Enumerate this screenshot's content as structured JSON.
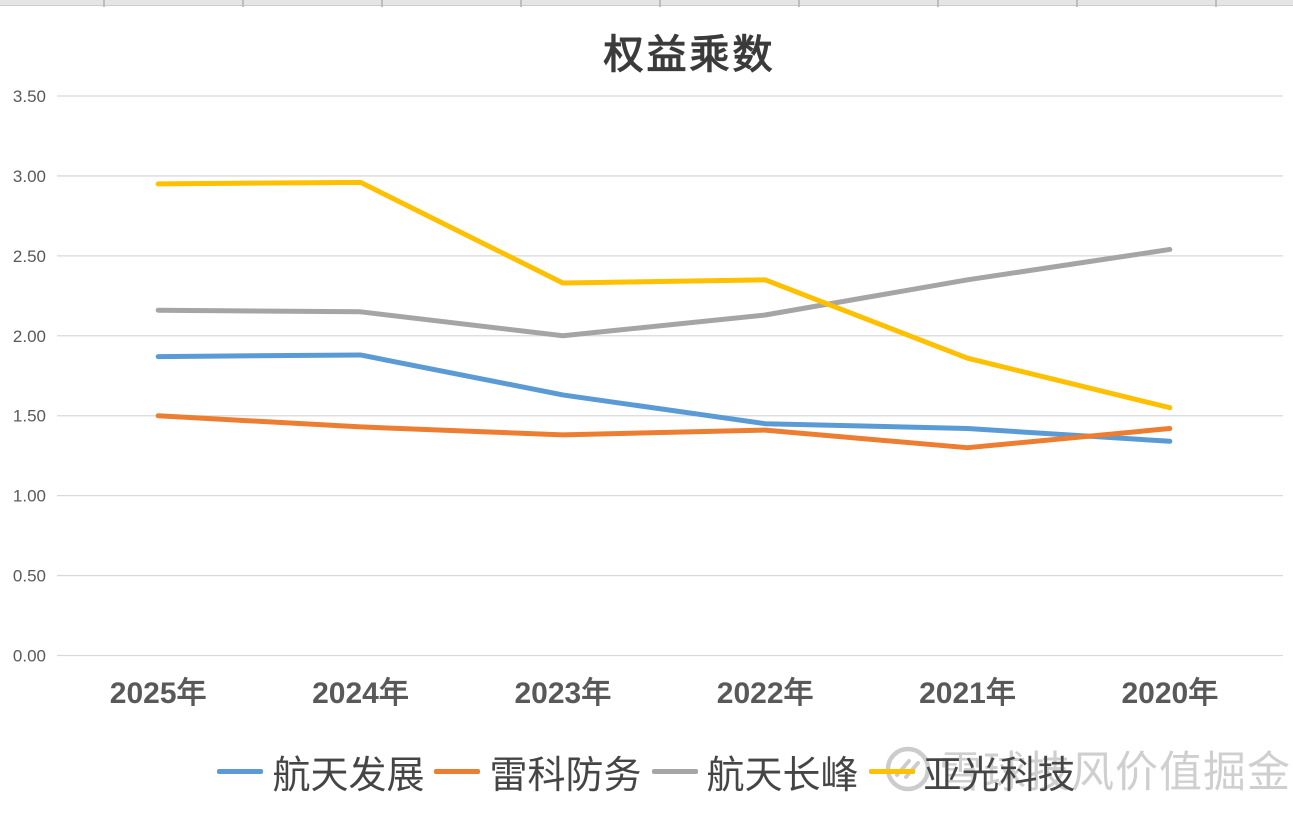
{
  "chart_data": {
    "type": "line",
    "title": "权益乘数",
    "categories": [
      "2025年",
      "2024年",
      "2023年",
      "2022年",
      "2021年",
      "2020年"
    ],
    "series": [
      {
        "name": "航天发展",
        "color": "#5B9BD5",
        "values": [
          1.87,
          1.88,
          1.63,
          1.45,
          1.42,
          1.34
        ]
      },
      {
        "name": "雷科防务",
        "color": "#ED7D31",
        "values": [
          1.5,
          1.43,
          1.38,
          1.41,
          1.3,
          1.42
        ]
      },
      {
        "name": "航天长峰",
        "color": "#A5A5A5",
        "values": [
          2.16,
          2.15,
          2.0,
          2.13,
          2.35,
          2.54
        ]
      },
      {
        "name": "亚光科技",
        "color": "#FFC000",
        "values": [
          2.95,
          2.96,
          2.33,
          2.35,
          1.86,
          1.55
        ]
      }
    ],
    "ylim": [
      0,
      3.5
    ],
    "ytick_labels": [
      "3.50",
      "3.00",
      "2.50",
      "2.00",
      "1.50",
      "1.00",
      "0.50",
      "0.00"
    ],
    "grid": "horizontal",
    "legend_position": "bottom",
    "colors": {
      "gridline": "#d9d9d9",
      "axis_label": "#595959",
      "title_text": "#3b3b3b",
      "legend_text": "#454545",
      "watermark": "#cfcfcf"
    }
  },
  "watermark": {
    "logo": "xueqiu-logo",
    "text": "雪球技风价值掘金"
  }
}
